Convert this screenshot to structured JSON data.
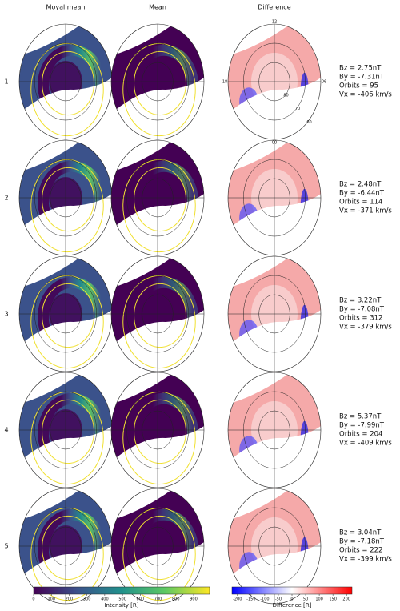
{
  "columns": [
    "Moyal mean",
    "Mean",
    "Difference"
  ],
  "rows": [
    {
      "label": "1",
      "params": [
        "Bz = 2.75nT",
        "By = -7.31nT",
        "Orbits = 95",
        "Vx = -406 km/s"
      ]
    },
    {
      "label": "2",
      "params": [
        "Bz = 2.48nT",
        "By = -6.44nT",
        "Orbits = 114",
        "Vx = -371 km/s"
      ]
    },
    {
      "label": "3",
      "params": [
        "Bz = 3.22nT",
        "By = -7.08nT",
        "Orbits = 312",
        "Vx = -379 km/s"
      ]
    },
    {
      "label": "4",
      "params": [
        "Bz = 5.37nT",
        "By = -7.99nT",
        "Orbits = 204",
        "Vx = -409 km/s"
      ]
    },
    {
      "label": "5",
      "params": [
        "Bz = 3.04nT",
        "By = -7.18nT",
        "Orbits = 222",
        "Vx = -399 km/s"
      ]
    }
  ],
  "mlt_labels": [
    "12",
    "18",
    "06",
    "00"
  ],
  "lat_labels": [
    "80",
    "70",
    "60"
  ],
  "colorbars": [
    {
      "label": "Intensity [R]",
      "lim": [
        0,
        990
      ],
      "ticks": [
        0,
        100,
        200,
        300,
        400,
        500,
        600,
        700,
        800,
        900
      ],
      "colors": [
        "#440154",
        "#3b528b",
        "#21918c",
        "#5ec962",
        "#fde725"
      ]
    },
    {
      "label": "Difference [R]",
      "lim": [
        -220,
        220
      ],
      "ticks": [
        -200,
        -150,
        -100,
        -50,
        0,
        50,
        100,
        150,
        200
      ],
      "colors": [
        "#0000ff",
        "#ffffff",
        "#ff0000"
      ]
    }
  ]
}
